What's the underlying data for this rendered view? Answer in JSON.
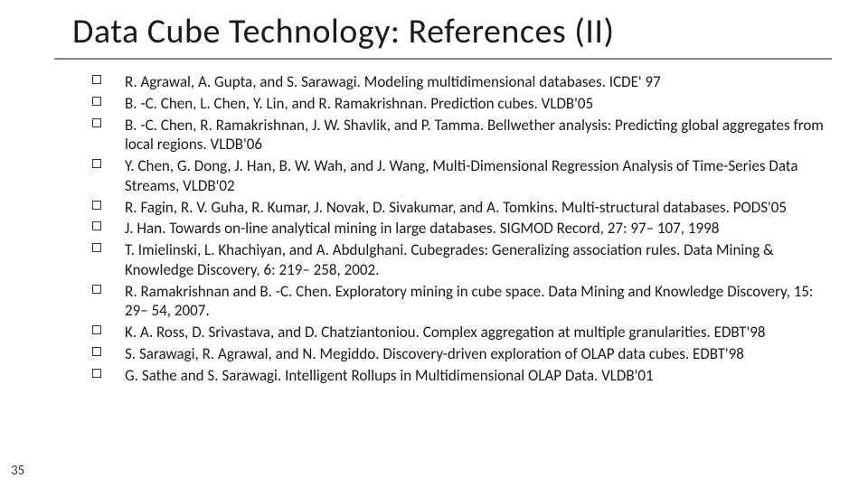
{
  "title": "Data Cube Technology: References (II)",
  "page_number": "35",
  "style": {
    "background_color": "#ffffff",
    "title_fontsize": 38,
    "title_color": "#1a1a1a",
    "title_font": "Calibri Light",
    "rule_color": "#888888",
    "body_fontsize": 17,
    "body_color": "#1a1a1a",
    "bullet_border_color": "#333333",
    "bullet_size": 10,
    "page_num_fontsize": 15,
    "page_num_color": "#3a3a3a"
  },
  "references": [
    "R. Agrawal, A. Gupta, and S. Sarawagi. Modeling multidimensional databases.  ICDE' 97",
    "B. -C. Chen, L. Chen, Y. Lin, and R. Ramakrishnan. Prediction cubes. VLDB'05",
    "B. -C. Chen, R. Ramakrishnan, J. W. Shavlik, and P. Tamma. Bellwether analysis: Predicting global aggregates from local regions. VLDB'06",
    "Y. Chen, G. Dong, J. Han, B. W. Wah, and J. Wang, Multi-Dimensional Regression Analysis of Time-Series Data Streams, VLDB'02",
    "R. Fagin, R. V. Guha, R. Kumar, J. Novak, D. Sivakumar, and A. Tomkins. Multi-structural databases. PODS'05",
    "J. Han. Towards on-line analytical mining in large databases. SIGMOD Record, 27: 97– 107, 1998",
    "T. Imielinski, L. Khachiyan, and A. Abdulghani. Cubegrades: Generalizing association rules. Data Mining & Knowledge Discovery, 6: 219– 258, 2002.",
    "R. Ramakrishnan and B. -C. Chen. Exploratory mining in cube space. Data Mining and Knowledge Discovery, 15: 29– 54, 2007.",
    "K. A. Ross, D. Srivastava, and D. Chatziantoniou. Complex aggregation at multiple granularities. EDBT'98",
    "S. Sarawagi, R. Agrawal, and N. Megiddo. Discovery-driven exploration of OLAP data cubes. EDBT'98",
    "G. Sathe and S. Sarawagi. Intelligent Rollups in Multidimensional OLAP Data. VLDB'01"
  ]
}
